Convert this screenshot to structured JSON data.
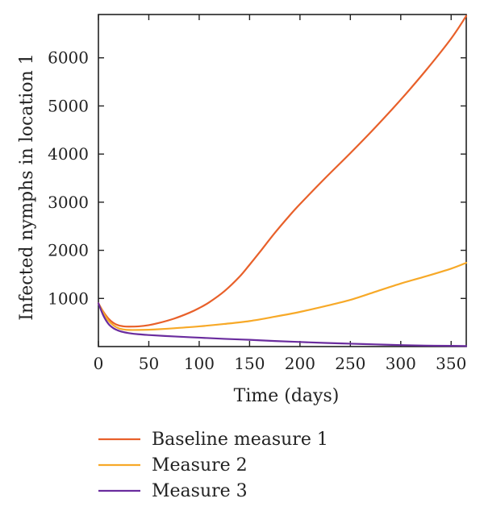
{
  "chart_data": {
    "type": "line",
    "title": "",
    "xlabel": "Time (days)",
    "ylabel": "Infected nymphs in location 1",
    "xlim": [
      0,
      365
    ],
    "ylim": [
      0,
      6900
    ],
    "xticks": [
      0,
      50,
      100,
      150,
      200,
      250,
      300,
      350
    ],
    "yticks": [
      1000,
      2000,
      3000,
      4000,
      5000,
      6000
    ],
    "grid": false,
    "legend_position": "bottom",
    "series": [
      {
        "name": "Baseline measure 1",
        "color": "#e8602a",
        "x": [
          0,
          5,
          10,
          15,
          20,
          25,
          30,
          40,
          50,
          60,
          75,
          90,
          100,
          110,
          125,
          140,
          150,
          160,
          175,
          190,
          200,
          225,
          250,
          275,
          300,
          325,
          350,
          365
        ],
        "values": [
          900,
          720,
          580,
          490,
          440,
          420,
          415,
          420,
          445,
          490,
          580,
          700,
          800,
          920,
          1150,
          1450,
          1700,
          1960,
          2360,
          2730,
          2960,
          3500,
          4020,
          4560,
          5130,
          5740,
          6400,
          6870
        ]
      },
      {
        "name": "Measure 2",
        "color": "#f7a928",
        "x": [
          0,
          5,
          10,
          15,
          20,
          25,
          30,
          40,
          50,
          60,
          75,
          100,
          125,
          150,
          175,
          200,
          225,
          250,
          275,
          300,
          325,
          350,
          365
        ],
        "values": [
          900,
          700,
          540,
          440,
          380,
          355,
          345,
          345,
          350,
          360,
          380,
          420,
          470,
          530,
          620,
          720,
          840,
          970,
          1140,
          1310,
          1460,
          1620,
          1740
        ]
      },
      {
        "name": "Measure 3",
        "color": "#6a2c9e",
        "x": [
          0,
          5,
          10,
          15,
          20,
          25,
          30,
          40,
          50,
          75,
          100,
          125,
          150,
          175,
          200,
          225,
          250,
          275,
          300,
          325,
          350,
          365
        ],
        "values": [
          900,
          640,
          470,
          380,
          330,
          300,
          280,
          255,
          240,
          210,
          185,
          160,
          140,
          115,
          95,
          75,
          60,
          45,
          30,
          20,
          15,
          10
        ]
      }
    ]
  }
}
